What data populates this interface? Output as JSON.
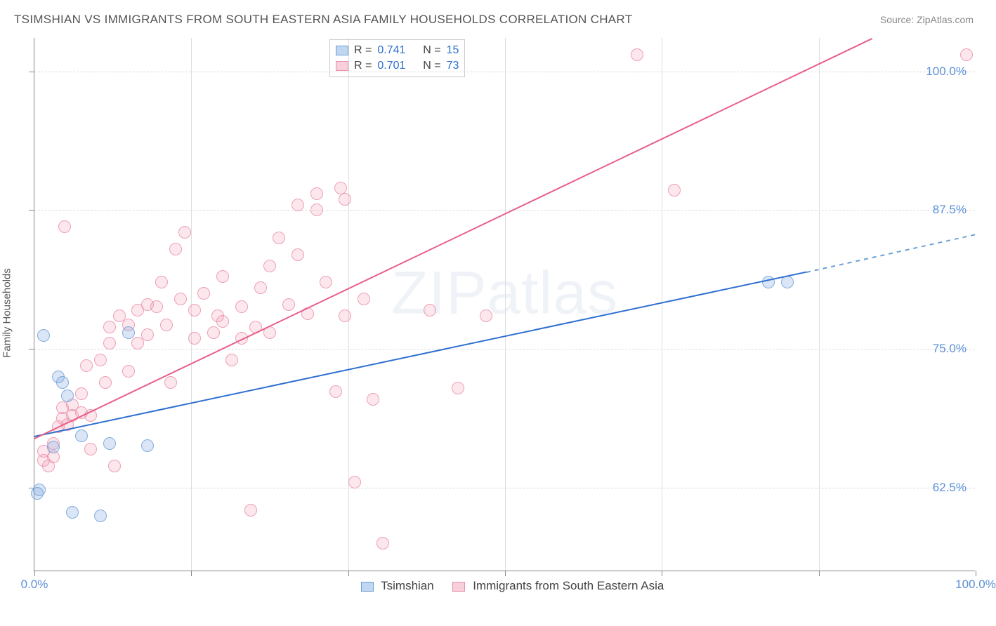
{
  "header": {
    "title": "TSIMSHIAN VS IMMIGRANTS FROM SOUTH EASTERN ASIA FAMILY HOUSEHOLDS CORRELATION CHART",
    "source_label": "Source:",
    "source_name": "ZipAtlas.com"
  },
  "watermark": "ZIPatlas",
  "chart": {
    "type": "scatter",
    "y_axis_label": "Family Households",
    "background_color": "#ffffff",
    "grid_color": "#dddddd",
    "axis_color": "#888888",
    "tick_label_color": "#5b8fd6",
    "xlim": [
      0,
      100
    ],
    "ylim": [
      55,
      103
    ],
    "x_ticks": [
      0,
      16.67,
      33.33,
      50,
      66.67,
      83.33,
      100
    ],
    "y_grid": [
      62.5,
      75.0,
      87.5,
      100.0
    ],
    "x_tick_labels": {
      "0": "0.0%",
      "100": "100.0%"
    },
    "y_tick_labels": {
      "62.5": "62.5%",
      "75": "75.0%",
      "87.5": "87.5%",
      "100": "100.0%"
    },
    "marker_radius": 9,
    "trend_width": 2
  },
  "series": {
    "blue": {
      "label": "Tsimshian",
      "color_fill": "rgba(132,173,225,0.35)",
      "color_stroke": "#6d9fd6",
      "trend_color": "#2f6fd0",
      "R": "0.741",
      "N": "15",
      "trend": {
        "x1": 0,
        "y1": 67.2,
        "x2": 82,
        "y2": 82.0,
        "dash_x2": 100,
        "dash_y2": 85.4
      },
      "points": [
        [
          1,
          76.2
        ],
        [
          0.5,
          62.3
        ],
        [
          2,
          66.2
        ],
        [
          2.5,
          72.5
        ],
        [
          3,
          72.0
        ],
        [
          3.5,
          70.8
        ],
        [
          4,
          60.3
        ],
        [
          5,
          67.2
        ],
        [
          7,
          60.0
        ],
        [
          8,
          66.5
        ],
        [
          10,
          76.5
        ],
        [
          12,
          66.3
        ],
        [
          78,
          81.0
        ],
        [
          80,
          81.0
        ],
        [
          0.3,
          62.0
        ]
      ]
    },
    "pink": {
      "label": "Immigrants from South Eastern Asia",
      "color_fill": "rgba(240,150,175,0.28)",
      "color_stroke": "#eb8fab",
      "trend_color": "#e85f8a",
      "R": "0.701",
      "N": "73",
      "trend": {
        "x1": 0,
        "y1": 67.0,
        "x2": 89,
        "y2": 103.0
      },
      "points": [
        [
          1,
          65.0
        ],
        [
          1,
          65.8
        ],
        [
          1.5,
          64.5
        ],
        [
          2,
          65.3
        ],
        [
          2,
          66.5
        ],
        [
          2.5,
          68.0
        ],
        [
          3,
          68.8
        ],
        [
          3,
          69.7
        ],
        [
          3.5,
          68.2
        ],
        [
          4,
          69.0
        ],
        [
          4,
          70.0
        ],
        [
          5,
          69.3
        ],
        [
          5,
          71.0
        ],
        [
          5.5,
          73.5
        ],
        [
          6,
          69.0
        ],
        [
          6,
          66.0
        ],
        [
          7,
          74.0
        ],
        [
          7.5,
          72.0
        ],
        [
          8,
          75.5
        ],
        [
          8,
          77.0
        ],
        [
          8.5,
          64.5
        ],
        [
          9,
          78.0
        ],
        [
          10,
          77.2
        ],
        [
          10,
          73.0
        ],
        [
          11,
          78.5
        ],
        [
          11,
          75.5
        ],
        [
          12,
          79.0
        ],
        [
          12,
          76.3
        ],
        [
          13,
          78.8
        ],
        [
          13.5,
          81.0
        ],
        [
          14,
          77.2
        ],
        [
          14.5,
          72.0
        ],
        [
          15,
          84.0
        ],
        [
          15.5,
          79.5
        ],
        [
          16,
          85.5
        ],
        [
          17,
          76.0
        ],
        [
          17,
          78.5
        ],
        [
          18,
          80.0
        ],
        [
          19,
          76.5
        ],
        [
          19.5,
          78.0
        ],
        [
          20,
          77.5
        ],
        [
          20,
          81.5
        ],
        [
          21,
          74.0
        ],
        [
          22,
          76.0
        ],
        [
          22,
          78.8
        ],
        [
          23,
          60.5
        ],
        [
          23.5,
          77.0
        ],
        [
          24,
          80.5
        ],
        [
          25,
          76.5
        ],
        [
          25,
          82.5
        ],
        [
          26,
          85.0
        ],
        [
          27,
          79.0
        ],
        [
          28,
          88.0
        ],
        [
          28,
          83.5
        ],
        [
          29,
          78.2
        ],
        [
          30,
          89.0
        ],
        [
          30,
          87.5
        ],
        [
          31,
          81.0
        ],
        [
          32,
          71.2
        ],
        [
          32.5,
          89.5
        ],
        [
          33,
          88.5
        ],
        [
          33,
          78.0
        ],
        [
          34,
          63.0
        ],
        [
          35,
          79.5
        ],
        [
          36,
          70.5
        ],
        [
          37,
          57.5
        ],
        [
          42,
          78.5
        ],
        [
          45,
          71.5
        ],
        [
          48,
          78.0
        ],
        [
          64,
          101.5
        ],
        [
          68,
          89.3
        ],
        [
          99,
          101.5
        ],
        [
          3.2,
          86.0
        ]
      ]
    }
  },
  "legend_top": {
    "R_label": "R =",
    "N_label": "N ="
  }
}
